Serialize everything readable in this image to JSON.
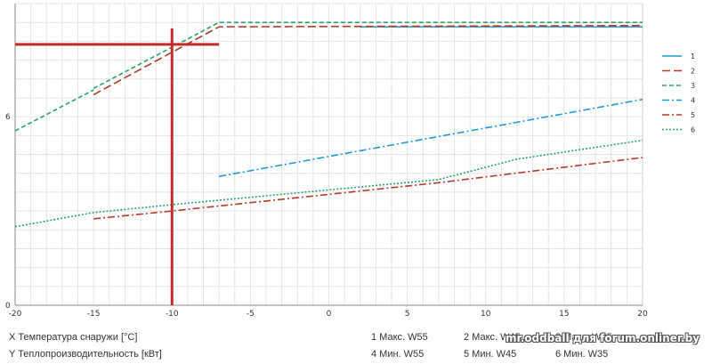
{
  "chart_data": {
    "type": "line",
    "xlabel": "",
    "ylabel": "",
    "xlim": [
      -20,
      20
    ],
    "ylim": [
      0,
      9.6
    ],
    "x_ticks": [
      -20,
      -15,
      -10,
      -5,
      0,
      5,
      10,
      15,
      20
    ],
    "x_tick_labels": [
      "-20",
      "-15",
      "-10",
      "-5",
      "0",
      "5",
      "10",
      "15",
      "20"
    ],
    "y_ticks": [
      0,
      6
    ],
    "y_tick_labels": [
      "0",
      "6"
    ],
    "grid": true,
    "legend_position": "right",
    "series": [
      {
        "name": "1",
        "color": "#1f9bd1",
        "dash": "solid",
        "x": [
          2,
          20
        ],
        "y": [
          8.86,
          8.86
        ]
      },
      {
        "name": "2",
        "color": "#b33a2a",
        "dash": "long-dash",
        "x": [
          -15,
          -7,
          20
        ],
        "y": [
          6.7,
          8.86,
          8.9
        ]
      },
      {
        "name": "3",
        "color": "#2aa36b",
        "dash": "dash",
        "x": [
          -15,
          -7,
          20
        ],
        "y": [
          6.9,
          9.0,
          9.0
        ]
      },
      {
        "name": "4",
        "color": "#1f9bd1",
        "dash": "dash-dot",
        "x": [
          -7,
          20
        ],
        "y": [
          4.1,
          6.55
        ]
      },
      {
        "name": "5",
        "color": "#b33a2a",
        "dash": "dash-dot",
        "x": [
          -15,
          -10,
          7,
          20
        ],
        "y": [
          2.75,
          3.0,
          3.9,
          4.7
        ]
      },
      {
        "name": "6",
        "color": "#2aa36b",
        "dash": "dot",
        "x": [
          -20,
          -15,
          -10,
          7,
          12,
          20
        ],
        "y": [
          2.5,
          2.95,
          3.2,
          4.0,
          4.65,
          5.25
        ]
      }
    ],
    "extra_line": {
      "color": "#2aa36b",
      "dash": "dash",
      "x": [
        -20,
        -15
      ],
      "y": [
        5.55,
        6.85
      ]
    },
    "marker_lines": {
      "color": "#c42a2a",
      "x": -10,
      "y": 8.3,
      "x_from": -20,
      "y_to": 0,
      "x_to": -7
    }
  },
  "footer": {
    "x_caption": "X Температура снаружи  [°C]",
    "y_caption": "Y Теплопроизводительность [кВт]",
    "legend_row1": [
      "1 Макс. W55",
      "2 Макс. W45",
      "3 Макс. W35"
    ],
    "legend_row2": [
      "4 Мин. W55",
      "5 Мин.  W45",
      "6 Мин. W35"
    ]
  },
  "watermark": "mr.oddball для forum.onliner.by"
}
